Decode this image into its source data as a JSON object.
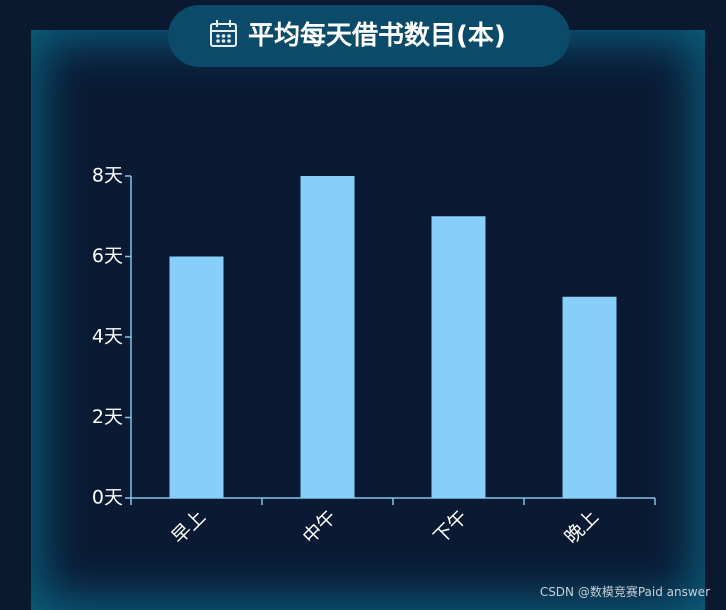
{
  "chart_data": {
    "type": "bar",
    "title": "平均每天借书数目(本)",
    "categories": [
      "早上",
      "中午",
      "下午",
      "晚上"
    ],
    "values": [
      6,
      8,
      7,
      5
    ],
    "color": "#87cefa",
    "ylim": [
      0,
      8
    ],
    "yticks": [
      {
        "value": 0,
        "label": "0天"
      },
      {
        "value": 2,
        "label": "2天"
      },
      {
        "value": 4,
        "label": "4天"
      },
      {
        "value": 6,
        "label": "6天"
      },
      {
        "value": 8,
        "label": "8天"
      }
    ],
    "grid": false
  },
  "watermark": "CSDN @数模竞赛Paid answer"
}
